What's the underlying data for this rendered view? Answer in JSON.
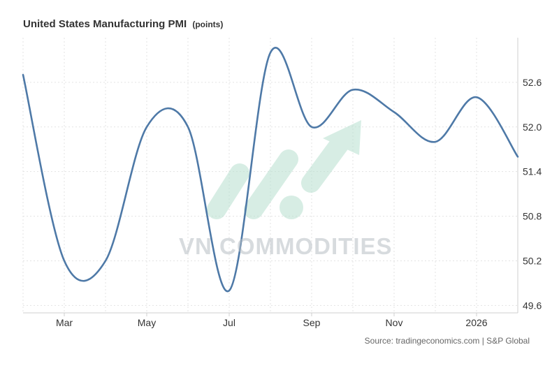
{
  "chart_data": {
    "type": "line",
    "title": "United States Manufacturing PMI",
    "unit": "(points)",
    "x_tick_labels": [
      "Mar",
      "May",
      "Jul",
      "Sep",
      "Nov",
      "2026"
    ],
    "x": [
      "Feb 2025",
      "Mar 2025",
      "Apr 2025",
      "May 2025",
      "Jun 2025",
      "Jul 2025",
      "Aug 2025",
      "Sep 2025",
      "Oct 2025",
      "Nov 2025",
      "Dec 2025",
      "Jan 2026",
      "Feb 2026"
    ],
    "values": [
      52.7,
      50.2,
      50.2,
      52.0,
      52.0,
      49.8,
      53.0,
      52.0,
      52.5,
      52.2,
      51.8,
      52.4,
      51.6
    ],
    "ylim": [
      49.5,
      53.2
    ],
    "y_ticks": [
      49.6,
      50.2,
      50.8,
      51.4,
      52.0,
      52.6
    ],
    "y_axis_position": "right",
    "grid": true,
    "line_color": "#4e79a7"
  },
  "source": "Source: tradingeconomics.com | S&P Global",
  "watermark": "VN COMMODITIES"
}
